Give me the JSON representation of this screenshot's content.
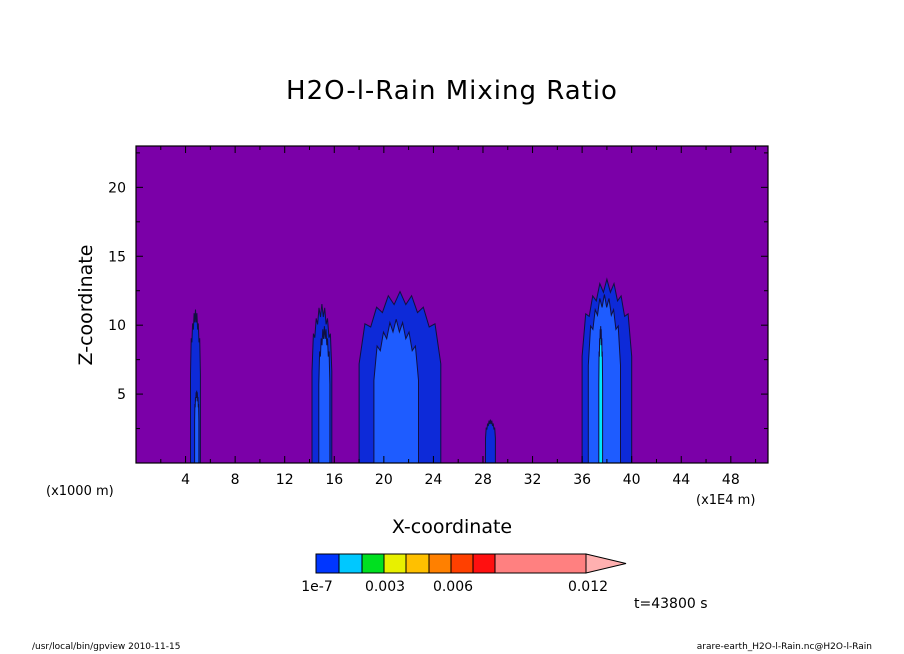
{
  "chart_data": {
    "type": "heatmap",
    "title": "H2O-l-Rain Mixing Ratio",
    "xlabel": "X-coordinate",
    "ylabel": "Z-coordinate",
    "x_unit": "(x1E4 m)",
    "y_unit": "(x1000 m)",
    "xlim": [
      0,
      51
    ],
    "ylim": [
      0,
      23
    ],
    "x_ticks": [
      4,
      8,
      12,
      16,
      20,
      24,
      28,
      32,
      36,
      40,
      44,
      48
    ],
    "y_ticks": [
      5,
      10,
      15,
      20
    ],
    "background_color": "#7b00a8",
    "cells": [
      {
        "x_center": 4.8,
        "width": 0.8,
        "top": 10.7,
        "level": 1
      },
      {
        "x_center": 4.9,
        "width": 0.35,
        "top": 5.0,
        "level": 2
      },
      {
        "x_center": 15.0,
        "width": 1.6,
        "top": 11.1,
        "level": 1
      },
      {
        "x_center": 15.2,
        "width": 0.9,
        "top": 9.5,
        "level": 2
      },
      {
        "x_center": 21.3,
        "width": 6.6,
        "top": 12.0,
        "level": 1
      },
      {
        "x_center": 21.0,
        "width": 3.6,
        "top": 10.0,
        "level": 2
      },
      {
        "x_center": 28.6,
        "width": 0.8,
        "top": 3.0,
        "level": 1
      },
      {
        "x_center": 38.0,
        "width": 4.0,
        "top": 12.9,
        "level": 1
      },
      {
        "x_center": 37.8,
        "width": 2.6,
        "top": 11.8,
        "level": 2
      },
      {
        "x_center": 37.5,
        "width": 0.3,
        "top": 9.5,
        "level": 3
      }
    ],
    "colorbar": {
      "colors": [
        "#0036ff",
        "#00c8ff",
        "#00e020",
        "#e8f000",
        "#ffc000",
        "#ff8000",
        "#ff4000",
        "#ff1010",
        "#ff8080"
      ],
      "labels": [
        "1e-7",
        "0.003",
        "0.006",
        "0.012"
      ],
      "extend": "max"
    },
    "level_colors": {
      "1": "#0d2ad8",
      "2": "#1e5cff",
      "3": "#00e8ff"
    }
  },
  "time_label": "t=43800 s",
  "footer_left": "/usr/local/bin/gpview  2010-11-15",
  "footer_right": "arare-earth_H2O-l-Rain.nc@H2O-l-Rain"
}
